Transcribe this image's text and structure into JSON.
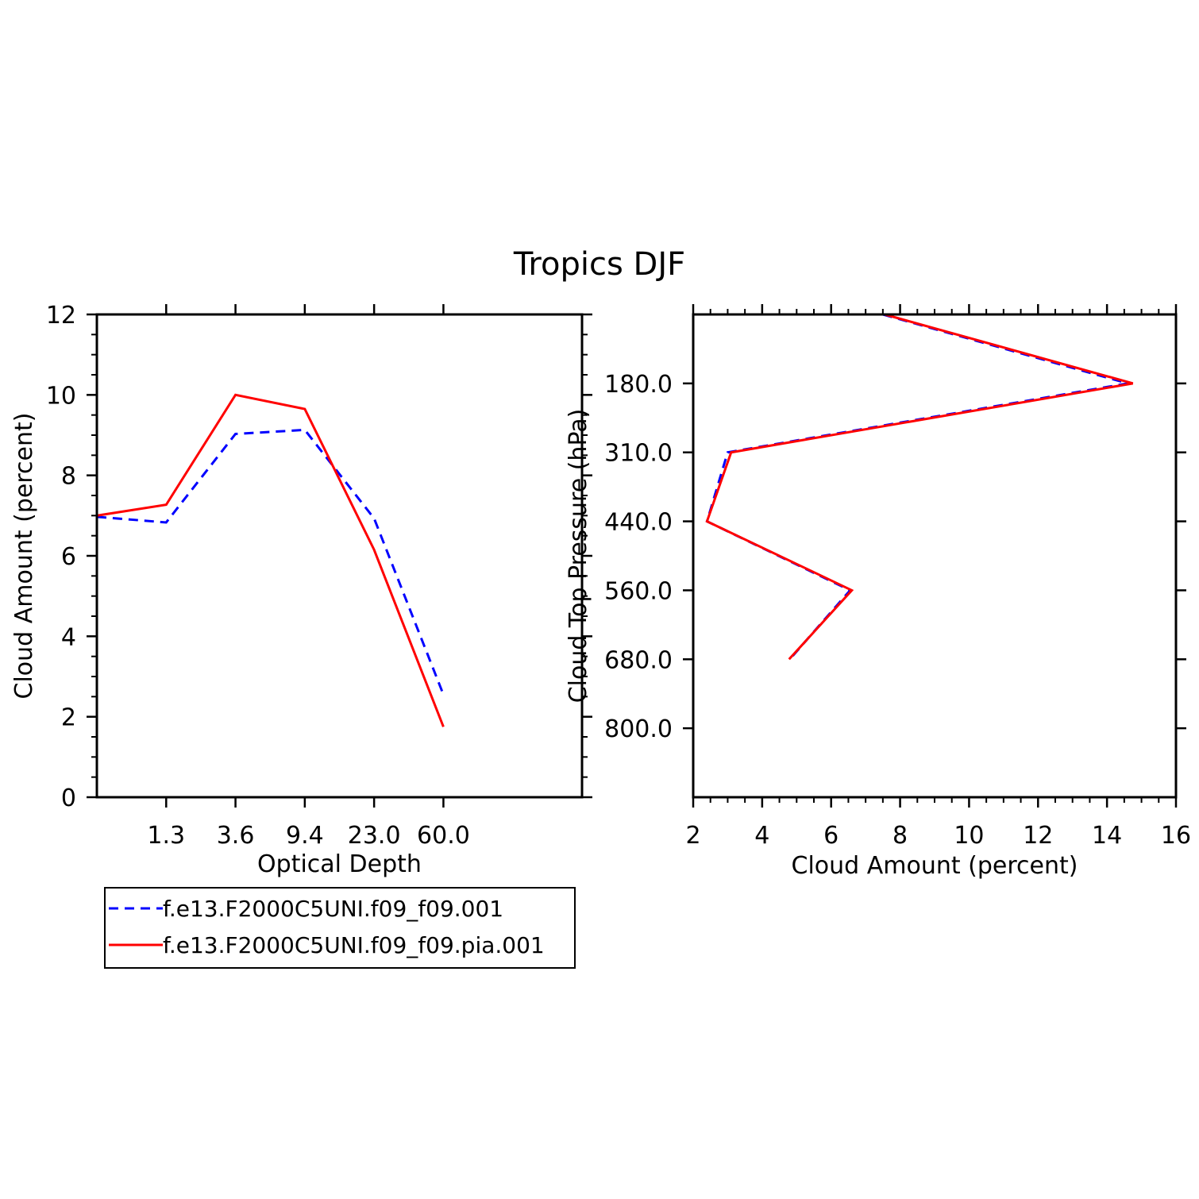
{
  "title": "Tropics DJF",
  "chart_data": [
    {
      "type": "line",
      "xlabel": "Optical Depth",
      "ylabel": "Cloud Amount (percent)",
      "ylim": [
        0,
        12
      ],
      "y_ticks": [
        "0",
        "2",
        "4",
        "6",
        "8",
        "10",
        "12"
      ],
      "x_tick_labels": [
        "1.3",
        "3.6",
        "9.4",
        "23.0",
        "60.0"
      ],
      "x_bins": 7,
      "series": [
        {
          "name": "f.e13.F2000C5UNI.f09_f09.001",
          "color": "#0000ff",
          "dash": "dashed",
          "values": [
            6.97,
            6.83,
            9.03,
            9.13,
            6.93,
            2.55
          ]
        },
        {
          "name": "f.e13.F2000C5UNI.f09_f09.pia.001",
          "color": "#ff0000",
          "dash": "solid",
          "values": [
            7.0,
            7.27,
            10.0,
            9.65,
            6.15,
            1.75
          ]
        }
      ]
    },
    {
      "type": "line",
      "xlabel": "Cloud Amount (percent)",
      "ylabel": "Cloud Top Pressure (hPa)",
      "xlim": [
        2,
        16
      ],
      "x_ticks": [
        "2",
        "4",
        "6",
        "8",
        "10",
        "12",
        "14",
        "16"
      ],
      "y_tick_labels": [
        "180.0",
        "310.0",
        "440.0",
        "560.0",
        "680.0",
        "800.0"
      ],
      "y_bins": 7,
      "series": [
        {
          "name": "f.e13.F2000C5UNI.f09_f09.001",
          "color": "#0000ff",
          "dash": "dashed",
          "values": [
            7.5,
            14.6,
            3.0,
            2.4,
            6.55,
            4.8
          ]
        },
        {
          "name": "f.e13.F2000C5UNI.f09_f09.pia.001",
          "color": "#ff0000",
          "dash": "solid",
          "values": [
            7.55,
            14.75,
            3.1,
            2.4,
            6.6,
            4.78
          ]
        }
      ]
    }
  ],
  "legend": [
    {
      "label": "f.e13.F2000C5UNI.f09_f09.001",
      "color": "#0000ff",
      "dash": "dashed"
    },
    {
      "label": "f.e13.F2000C5UNI.f09_f09.pia.001",
      "color": "#ff0000",
      "dash": "solid"
    }
  ]
}
